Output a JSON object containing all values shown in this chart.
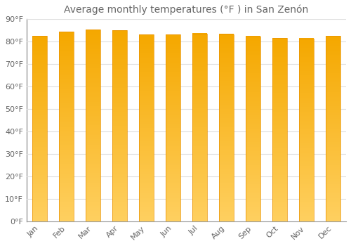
{
  "title": "Average monthly temperatures (°F ) in San Zenón",
  "months": [
    "Jan",
    "Feb",
    "Mar",
    "Apr",
    "May",
    "Jun",
    "Jul",
    "Aug",
    "Sep",
    "Oct",
    "Nov",
    "Dec"
  ],
  "values": [
    82.4,
    84.2,
    85.1,
    85.0,
    83.1,
    82.9,
    83.5,
    83.2,
    82.2,
    81.5,
    81.3,
    82.3
  ],
  "bar_color": "#FFA020",
  "bar_color_light": "#FFD060",
  "background_color": "#ffffff",
  "plot_bg_color": "#ffffff",
  "grid_color": "#dddddd",
  "text_color": "#666666",
  "ylim": [
    0,
    90
  ],
  "yticks": [
    0,
    10,
    20,
    30,
    40,
    50,
    60,
    70,
    80,
    90
  ],
  "ytick_labels": [
    "0°F",
    "10°F",
    "20°F",
    "30°F",
    "40°F",
    "50°F",
    "60°F",
    "70°F",
    "80°F",
    "90°F"
  ],
  "title_fontsize": 10,
  "tick_fontsize": 8,
  "bar_width": 0.55
}
